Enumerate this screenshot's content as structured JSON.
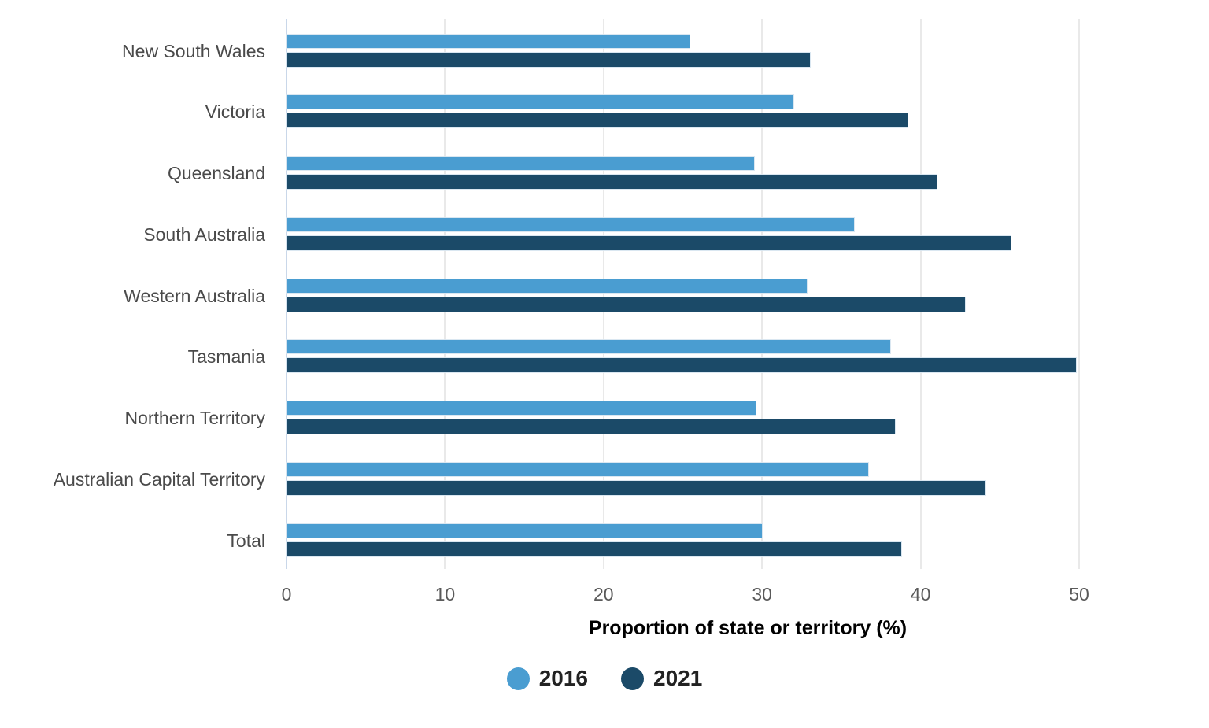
{
  "chart_data": {
    "type": "bar",
    "orientation": "horizontal",
    "title": "",
    "xlabel": "Proportion of state or territory (%)",
    "ylabel": "",
    "xlim": [
      0,
      50
    ],
    "x_ticks": [
      "0",
      "10",
      "20",
      "30",
      "40",
      "50"
    ],
    "grid": "vertical",
    "legend_position": "bottom",
    "categories": [
      "New South Wales",
      "Victoria",
      "Queensland",
      "South Australia",
      "Western Australia",
      "Tasmania",
      "Northern Territory",
      "Australian Capital Territory",
      "Total"
    ],
    "series": [
      {
        "name": "2016",
        "color": "#4A9DD1",
        "values": [
          25.4,
          32.0,
          29.5,
          35.8,
          32.8,
          38.1,
          29.6,
          36.7,
          30.0
        ]
      },
      {
        "name": "2021",
        "color": "#1B4A68",
        "values": [
          33.0,
          39.2,
          41.0,
          45.7,
          42.8,
          49.8,
          38.4,
          44.1,
          38.8
        ]
      }
    ]
  },
  "colors": {
    "background": "#ffffff",
    "gridline": "#e9e9e9",
    "zero_line": "#c9d7e9",
    "category_label": "#4a4a4a",
    "tick_label": "#5a5a5a",
    "axis_title": "#1c1c1c",
    "legend_text": "#222222"
  }
}
